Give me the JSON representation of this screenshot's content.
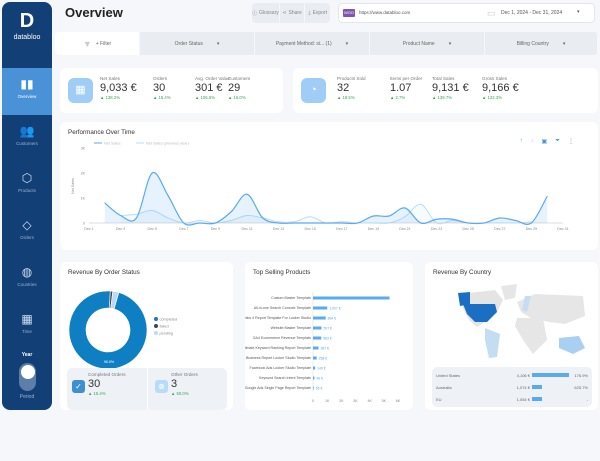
{
  "sidebar": {
    "logo": "databloo",
    "items": [
      {
        "label": "Overview",
        "icon": "bar-chart-icon"
      },
      {
        "label": "Customers",
        "icon": "users-icon"
      },
      {
        "label": "Products",
        "icon": "box-icon"
      },
      {
        "label": "Orders",
        "icon": "tag-icon"
      },
      {
        "label": "Countries",
        "icon": "globe-icon"
      },
      {
        "label": "Time",
        "icon": "calendar-icon"
      }
    ],
    "toggle_title": "Year",
    "toggle_label": "Period"
  },
  "header": {
    "title": "Overview",
    "glossary": "Glossary",
    "share": "Share",
    "export": "Export",
    "woo": "WOO",
    "url": "https://www.databloo.com",
    "date_range": "Dec 1, 2024 - Dec 31, 2024"
  },
  "filters": {
    "add": "+ Filter",
    "items": [
      "Order Status",
      "Payment Method: si... (1)",
      "Product Name",
      "Billing Country"
    ]
  },
  "kpis_left": [
    {
      "label": "Net Sales",
      "value": "9,033 €",
      "change": "138.2%"
    },
    {
      "label": "Orders",
      "value": "30",
      "change": "15.4%"
    },
    {
      "label": "Avg. Order Value",
      "value": "301 €",
      "change": "106.5%"
    },
    {
      "label": "Customers",
      "value": "29",
      "change": "16.0%"
    }
  ],
  "kpis_right": [
    {
      "label": "Products Sold",
      "value": "32",
      "change": "18.5%"
    },
    {
      "label": "Items per Order",
      "value": "1.07",
      "change": "2.7%"
    },
    {
      "label": "Total Sales",
      "value": "9,131 €",
      "change": "139.7%"
    },
    {
      "label": "Gross Sales",
      "value": "9,166 €",
      "change": "132.3%"
    }
  ],
  "colors": {
    "accent": "#4a92d8",
    "sidebar": "#123f75",
    "positive": "#3aa857",
    "series": "#5aaaf0",
    "series_prev": "#b8dbf8",
    "donut": "#0f7fc4"
  },
  "chart_data": [
    {
      "type": "line",
      "title": "Performance Over Time",
      "ylabel": "Net Sales",
      "ylim": [
        0,
        3000
      ],
      "yticks": [
        "0",
        "1K",
        "2K",
        "3K"
      ],
      "xticks": [
        "Dec 1",
        "Dec 3",
        "Dec 5",
        "Dec 7",
        "Dec 9",
        "Dec 11",
        "Dec 13",
        "Dec 15",
        "Dec 17",
        "Dec 19",
        "Dec 21",
        "Dec 23",
        "Dec 25",
        "Dec 27",
        "Dec 29",
        "Dec 31"
      ],
      "x": [
        2,
        3,
        4,
        5,
        6,
        7,
        8,
        9,
        10,
        11,
        12,
        13,
        14,
        15,
        16,
        17,
        18,
        19,
        20,
        21,
        22,
        23,
        24,
        25,
        26,
        27,
        28,
        29,
        30
      ],
      "series": [
        {
          "name": "Net Sales",
          "values": [
            800,
            300,
            200,
            2000,
            1100,
            0,
            0,
            0,
            450,
            1150,
            200,
            0,
            0,
            0,
            0,
            0,
            0,
            280,
            280,
            600,
            0,
            150,
            150,
            0,
            0,
            200,
            100,
            0,
            1070
          ]
        },
        {
          "name": "Net Sales (previous year)",
          "values": [
            null,
            300,
            350,
            500,
            200,
            0,
            100,
            0,
            100,
            300,
            200,
            50,
            50,
            250,
            0,
            50,
            0,
            0,
            0,
            250,
            750,
            0,
            100,
            0,
            0,
            0,
            0,
            50,
            null
          ]
        }
      ]
    },
    {
      "type": "pie",
      "title": "Revenue By Order Status",
      "labels": [
        "completed",
        "failed",
        "pending"
      ],
      "values": [
        96.5,
        1.0,
        2.5
      ],
      "data_label": "96.5%"
    },
    {
      "type": "bar",
      "title": "Top Selling Products",
      "categories": [
        "Custom Master Template",
        "All-in-one Search Console Template",
        "Google Analytics 4 Report Template For Looker Studio",
        "Website Master Template",
        "GA4 Ecommerce Revenue Template",
        "Ultimate Keyword Ranking Report Template",
        "Google My Business Report Looker Studio Template",
        "Facebook Ads Looker Studio Template",
        "Keyword Search Intent Template",
        "Google Ads Single Page Report Template"
      ],
      "values": [
        5400,
        1007,
        894,
        597,
        583,
        387,
        258,
        149,
        99,
        55
      ],
      "data_labels": [
        "",
        "1,007 €",
        "894 €",
        "597 €",
        "583 €",
        "387 €",
        "258 €",
        "149 €",
        "99 €",
        "55 €"
      ],
      "xticks": [
        "0",
        "1K",
        "2K",
        "3K",
        "4K",
        "5K",
        "6K"
      ],
      "xlim": [
        0,
        6000
      ]
    }
  ],
  "order_status": {
    "completed_label": "Completed Orders",
    "completed_value": "30",
    "completed_change": "15.4%",
    "other_label": "Other Orders",
    "other_value": "3",
    "other_change": "50.0%"
  },
  "country": {
    "title": "Revenue By Country",
    "rows": [
      {
        "name": "United States",
        "value": "4,106 €",
        "share": 1.0,
        "change": "176.9%"
      },
      {
        "name": "Australia",
        "value": "1,074 €",
        "share": 0.26,
        "change": "625.7%"
      },
      {
        "name": "EU",
        "value": "1,054 €",
        "share": 0.26,
        "change": "-"
      }
    ]
  }
}
